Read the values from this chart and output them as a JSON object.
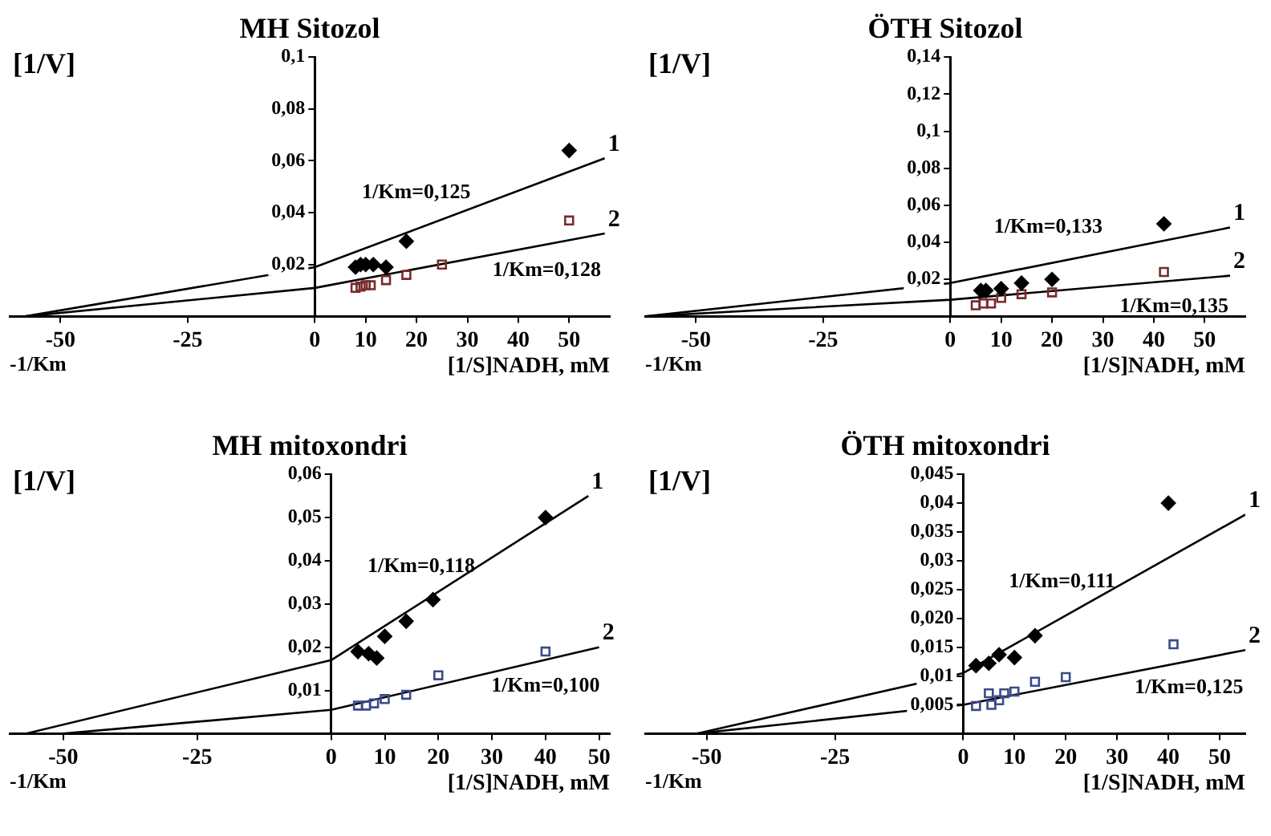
{
  "chart_data": [
    {
      "type": "scatter",
      "title": "MH Sitozol",
      "xlabel": "[1/S]NADH, mM",
      "ylabel": "[1/V]",
      "xlim": [
        -60,
        58
      ],
      "ylim": [
        0,
        0.1
      ],
      "xticks": [
        -50,
        -25,
        0,
        10,
        20,
        30,
        40,
        50
      ],
      "yticks": [
        {
          "value": 0.02,
          "label": "0,02"
        },
        {
          "value": 0.04,
          "label": "0,04"
        },
        {
          "value": 0.06,
          "label": "0,06"
        },
        {
          "value": 0.08,
          "label": "0,08"
        },
        {
          "value": 0.1,
          "label": "0,1"
        }
      ],
      "grid": false,
      "legend": false,
      "annotations": [
        "-1/Km",
        "1/Km=0,125",
        "1/Km=0,128"
      ],
      "series": [
        {
          "type": "scatter",
          "marker": "diamond",
          "color": "#000000",
          "x": [
            8,
            9,
            10,
            11.5,
            14,
            18,
            50
          ],
          "values": [
            0.019,
            0.02,
            0.02,
            0.02,
            0.019,
            0.029,
            0.064
          ]
        },
        {
          "type": "scatter",
          "marker": "square",
          "color": "#7a2a2a",
          "x": [
            8,
            9,
            10,
            11,
            14,
            18,
            25,
            50
          ],
          "values": [
            0.011,
            0.0115,
            0.012,
            0.012,
            0.014,
            0.016,
            0.02,
            0.037
          ]
        },
        {
          "type": "line",
          "name": "1",
          "marker": "none",
          "color": "#000000",
          "x": [
            -57,
            0,
            57
          ],
          "values": [
            0,
            0.019,
            0.061
          ]
        },
        {
          "type": "line",
          "name": "2",
          "marker": "none",
          "color": "#000000",
          "x": [
            -57,
            0,
            57
          ],
          "values": [
            0,
            0.011,
            0.032
          ]
        }
      ]
    },
    {
      "type": "scatter",
      "title": "ÖTH Sitozol",
      "xlabel": "[1/S]NADH, mM",
      "ylabel": "[1/V]",
      "xlim": [
        -60,
        58
      ],
      "ylim": [
        0,
        0.14
      ],
      "xticks": [
        -50,
        -25,
        0,
        10,
        20,
        30,
        40,
        50
      ],
      "yticks": [
        {
          "value": 0.02,
          "label": "0,02"
        },
        {
          "value": 0.04,
          "label": "0,04"
        },
        {
          "value": 0.06,
          "label": "0,06"
        },
        {
          "value": 0.08,
          "label": "0,08"
        },
        {
          "value": 0.1,
          "label": "0,1"
        },
        {
          "value": 0.12,
          "label": "0,12"
        },
        {
          "value": 0.14,
          "label": "0,14"
        }
      ],
      "grid": false,
      "legend": false,
      "annotations": [
        "-1/Km",
        "1/Km=0,133",
        "1/Km=0,135"
      ],
      "series": [
        {
          "type": "scatter",
          "marker": "diamond",
          "color": "#000000",
          "x": [
            6,
            7,
            10,
            14,
            20,
            42
          ],
          "values": [
            0.014,
            0.014,
            0.015,
            0.018,
            0.02,
            0.05
          ]
        },
        {
          "type": "scatter",
          "marker": "square",
          "color": "#7a2a2a",
          "x": [
            5,
            6.5,
            8,
            10,
            14,
            20,
            42
          ],
          "values": [
            0.006,
            0.007,
            0.007,
            0.01,
            0.012,
            0.013,
            0.024
          ]
        },
        {
          "type": "line",
          "name": "1",
          "marker": "none",
          "color": "#000000",
          "x": [
            -60,
            0,
            55
          ],
          "values": [
            0,
            0.018,
            0.048
          ]
        },
        {
          "type": "line",
          "name": "2",
          "marker": "none",
          "color": "#000000",
          "x": [
            -60,
            0,
            55
          ],
          "values": [
            0,
            0.009,
            0.022
          ]
        }
      ]
    },
    {
      "type": "scatter",
      "title": "MH mitoxondri",
      "xlabel": "[1/S]NADH, mM",
      "ylabel": "[1/V]",
      "xlim": [
        -60,
        52
      ],
      "ylim": [
        0,
        0.06
      ],
      "xticks": [
        -50,
        -25,
        0,
        10,
        20,
        30,
        40,
        50
      ],
      "yticks": [
        {
          "value": 0.01,
          "label": "0,01"
        },
        {
          "value": 0.02,
          "label": "0,02"
        },
        {
          "value": 0.03,
          "label": "0,03"
        },
        {
          "value": 0.04,
          "label": "0,04"
        },
        {
          "value": 0.05,
          "label": "0,05"
        },
        {
          "value": 0.06,
          "label": "0,06"
        }
      ],
      "grid": false,
      "legend": false,
      "annotations": [
        "-1/Km",
        "1/Km=0,118",
        "1/Km=0,100"
      ],
      "series": [
        {
          "type": "scatter",
          "marker": "diamond",
          "color": "#000000",
          "x": [
            5,
            7,
            8.5,
            10,
            14,
            19,
            40
          ],
          "values": [
            0.019,
            0.0185,
            0.0175,
            0.0225,
            0.026,
            0.031,
            0.05
          ]
        },
        {
          "type": "scatter",
          "marker": "square",
          "color": "#3a4a8a",
          "x": [
            5,
            6.5,
            8,
            10,
            14,
            20,
            40
          ],
          "values": [
            0.0065,
            0.0065,
            0.007,
            0.008,
            0.009,
            0.0135,
            0.019
          ]
        },
        {
          "type": "line",
          "name": "1",
          "marker": "none",
          "color": "#000000",
          "x": [
            -57,
            0,
            48
          ],
          "values": [
            0,
            0.017,
            0.055
          ]
        },
        {
          "type": "line",
          "name": "2",
          "marker": "none",
          "color": "#000000",
          "x": [
            -50,
            0,
            50
          ],
          "values": [
            0,
            0.0055,
            0.02
          ]
        }
      ]
    },
    {
      "type": "scatter",
      "title": "ÖTH mitoxondri",
      "xlabel": "[1/S]NADH, mM",
      "ylabel": "[1/V]",
      "xlim": [
        -62,
        55
      ],
      "ylim": [
        0,
        0.045
      ],
      "xticks": [
        -50,
        -25,
        0,
        10,
        20,
        30,
        40,
        50
      ],
      "yticks": [
        {
          "value": 0.005,
          "label": "0,005"
        },
        {
          "value": 0.01,
          "label": "0,01"
        },
        {
          "value": 0.015,
          "label": "0,015"
        },
        {
          "value": 0.02,
          "label": "0,020"
        },
        {
          "value": 0.025,
          "label": "0,025"
        },
        {
          "value": 0.03,
          "label": "0,03"
        },
        {
          "value": 0.035,
          "label": "0,035"
        },
        {
          "value": 0.04,
          "label": "0,04"
        },
        {
          "value": 0.045,
          "label": "0,045"
        }
      ],
      "grid": false,
      "legend": false,
      "annotations": [
        "-1/Km",
        "1/Km=0,111",
        "1/Km=0,125"
      ],
      "series": [
        {
          "type": "scatter",
          "marker": "diamond",
          "color": "#000000",
          "x": [
            2.5,
            5,
            7,
            10,
            14,
            40
          ],
          "values": [
            0.0118,
            0.0122,
            0.0137,
            0.0132,
            0.017,
            0.04
          ]
        },
        {
          "type": "scatter",
          "marker": "square",
          "color": "#3a4a8a",
          "x": [
            2.5,
            5,
            5.5,
            7,
            8,
            10,
            14,
            20,
            41
          ],
          "values": [
            0.0048,
            0.007,
            0.005,
            0.0058,
            0.007,
            0.0073,
            0.009,
            0.0098,
            0.0155
          ]
        },
        {
          "type": "line",
          "name": "1",
          "marker": "none",
          "color": "#000000",
          "x": [
            -52,
            0,
            55
          ],
          "values": [
            0,
            0.0105,
            0.038
          ]
        },
        {
          "type": "line",
          "name": "2",
          "marker": "none",
          "color": "#000000",
          "x": [
            -52,
            0,
            55
          ],
          "values": [
            0,
            0.005,
            0.0145
          ]
        }
      ]
    }
  ]
}
